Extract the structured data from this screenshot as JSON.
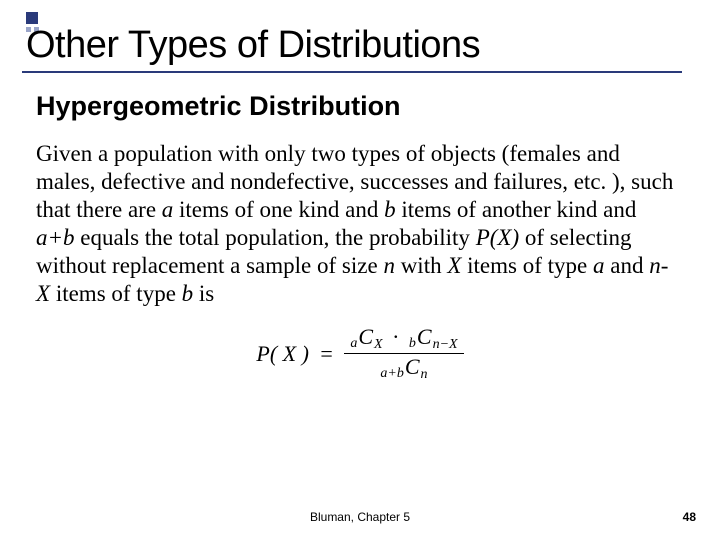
{
  "accent": {
    "primary": "#2a3a7a",
    "secondary": "#9aa5c9"
  },
  "title": "Other Types of Distributions",
  "subtitle": "Hypergeometric Distribution",
  "paragraph_html": "Given a population with only two types of objects (females and males, defective and nondefective, successes and failures, etc. ), such that there are <i>a</i> items of one kind and <i>b</i> items of another kind and <i>a+b</i> equals the total population, the probability <i>P(X)</i> of selecting without replacement a sample of size <i>n</i> with <i>X</i> items of type <i>a</i> and <i>n-X</i> items of type <i>b</i> is",
  "formula": {
    "lhs": "P( X )",
    "numerator": {
      "t1_pre": "a",
      "t1_C": "C",
      "t1_sub": "X",
      "dot": "·",
      "t2_pre": "b",
      "t2_C": "C",
      "t2_sub": "n−X"
    },
    "denominator": {
      "pre": "a+b",
      "C": "C",
      "sub": "n"
    }
  },
  "footer": "Bluman, Chapter 5",
  "page": "48",
  "typography": {
    "title_fontsize": 38,
    "subtitle_fontsize": 27,
    "body_fontsize": 23,
    "body_family": "Times New Roman",
    "footer_fontsize": 12
  }
}
